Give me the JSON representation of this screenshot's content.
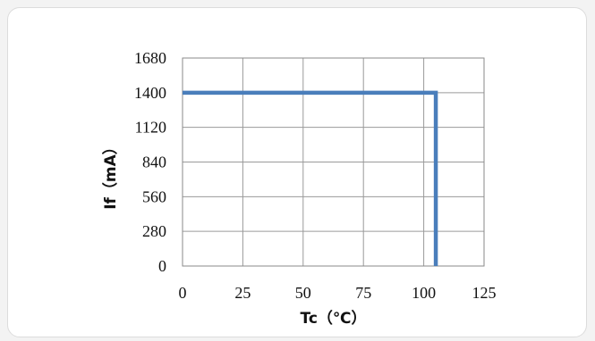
{
  "chart_data": {
    "type": "line",
    "title": "",
    "xlabel": "Tc（℃）",
    "ylabel": "If（mA）",
    "xlim": [
      0,
      125
    ],
    "ylim": [
      0,
      1680
    ],
    "x_ticks": [
      0,
      25,
      50,
      75,
      100,
      125
    ],
    "y_ticks": [
      0,
      280,
      560,
      840,
      1120,
      1400,
      1680
    ],
    "grid": true,
    "legend": "none",
    "series": [
      {
        "color": "#4a7ebb",
        "points": [
          {
            "x": 0,
            "y": 1400
          },
          {
            "x": 105,
            "y": 1400
          },
          {
            "x": 105,
            "y": 0
          }
        ]
      }
    ]
  }
}
